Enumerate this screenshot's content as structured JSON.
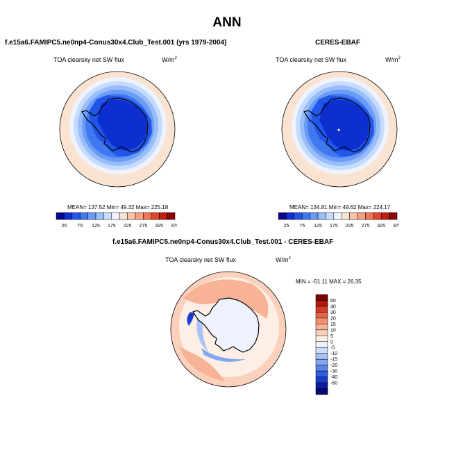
{
  "page": {
    "title": "ANN"
  },
  "panels": [
    {
      "title": "f.e15a6.FAMIPC5.ne0np4-Conus30x4.Club_Test.001 (yrs 1979-2004)",
      "variable": "TOA clearsky net SW flux",
      "units": "W/m",
      "units_exp": "2",
      "stats": "MEAN= 137.52  Min=  49.32  Max= 225.18",
      "colorbar": {
        "colors": [
          "#08088f",
          "#0d2fd0",
          "#2256e8",
          "#3f78ef",
          "#6a9bf5",
          "#98bdfa",
          "#c5dcfd",
          "#eef3ff",
          "#fbe3d2",
          "#fbc3a8",
          "#f7a085",
          "#ef7658",
          "#e0462d",
          "#bd1f10",
          "#8a0606"
        ],
        "labels": [
          "25",
          "75",
          "125",
          "175",
          "225",
          "275",
          "325",
          "375"
        ]
      }
    },
    {
      "title": "CERES-EBAF",
      "variable": "TOA clearsky net SW flux",
      "units": "W/m",
      "units_exp": "2",
      "stats": "MEAN= 134.81  Min=  49.62  Max= 224.17",
      "colorbar": {
        "colors": [
          "#08088f",
          "#0d2fd0",
          "#2256e8",
          "#3f78ef",
          "#6a9bf5",
          "#98bdfa",
          "#c5dcfd",
          "#eef3ff",
          "#fbe3d2",
          "#fbc3a8",
          "#f7a085",
          "#ef7658",
          "#e0462d",
          "#bd1f10",
          "#8a0606"
        ],
        "labels": [
          "25",
          "75",
          "125",
          "175",
          "225",
          "275",
          "325",
          "375"
        ]
      }
    },
    {
      "title": "f.e15a6.FAMIPC5.ne0np4-Conus30x4.Club_Test.001 - CERES-EBAF",
      "variable": "TOA clearsky net SW flux",
      "units": "W/m",
      "units_exp": "2",
      "stats": "MIN = -51.11 MAX =  26.35",
      "colorbar": {
        "colors": [
          "#08086e",
          "#0a1ea0",
          "#1a3ccc",
          "#3060e0",
          "#5a86ea",
          "#82a6f0",
          "#a8c2f5",
          "#ccdcfa",
          "#eef2fd",
          "#fdeee6",
          "#fbd1bd",
          "#f8b296",
          "#f28f6e",
          "#e8654a",
          "#d63a26",
          "#b01a0c",
          "#7a0404"
        ],
        "labels": [
          "60",
          "40",
          "30",
          "20",
          "15",
          "10",
          "5",
          "0",
          "-5",
          "-10",
          "-15",
          "-20",
          "-30",
          "-40",
          "-60"
        ]
      }
    }
  ]
}
